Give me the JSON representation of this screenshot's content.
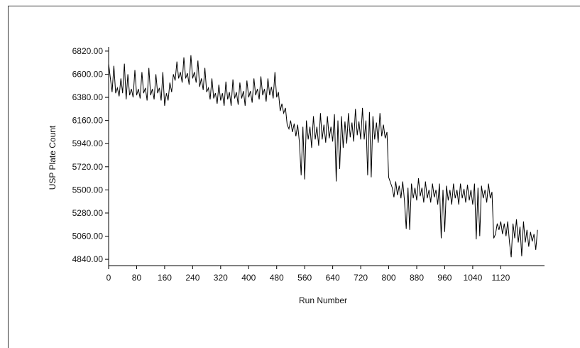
{
  "chart_data": {
    "type": "line",
    "title": "",
    "xlabel": "Run Number",
    "ylabel": "USP Plate Count",
    "xlim": [
      0,
      1245
    ],
    "ylim": [
      4780,
      6860
    ],
    "x_ticks": [
      0,
      80,
      160,
      240,
      320,
      400,
      480,
      560,
      640,
      720,
      800,
      880,
      960,
      1040,
      1120
    ],
    "x_tick_labels": [
      "0",
      "80",
      "160",
      "240",
      "320",
      "400",
      "480",
      "560",
      "640",
      "720",
      "800",
      "880",
      "960",
      "1040",
      "1120"
    ],
    "y_ticks": [
      4840,
      5060,
      5280,
      5500,
      5720,
      5940,
      6160,
      6380,
      6600,
      6820
    ],
    "y_tick_labels": [
      "4840.00",
      "5060.00",
      "5280.00",
      "5500.00",
      "5720.00",
      "5940.00",
      "6160.00",
      "6380.00",
      "6600.00",
      "6820.00"
    ],
    "grid": false,
    "line_color": "#000000",
    "series": [
      {
        "name": "",
        "points": [
          [
            0,
            6700
          ],
          [
            5,
            6560
          ],
          [
            10,
            6430
          ],
          [
            15,
            6680
          ],
          [
            20,
            6420
          ],
          [
            25,
            6470
          ],
          [
            30,
            6390
          ],
          [
            35,
            6560
          ],
          [
            40,
            6420
          ],
          [
            45,
            6700
          ],
          [
            50,
            6360
          ],
          [
            55,
            6600
          ],
          [
            60,
            6400
          ],
          [
            65,
            6460
          ],
          [
            70,
            6380
          ],
          [
            75,
            6640
          ],
          [
            80,
            6400
          ],
          [
            85,
            6460
          ],
          [
            90,
            6370
          ],
          [
            95,
            6620
          ],
          [
            100,
            6420
          ],
          [
            105,
            6470
          ],
          [
            110,
            6350
          ],
          [
            115,
            6660
          ],
          [
            120,
            6400
          ],
          [
            125,
            6460
          ],
          [
            130,
            6360
          ],
          [
            135,
            6600
          ],
          [
            140,
            6420
          ],
          [
            145,
            6470
          ],
          [
            150,
            6350
          ],
          [
            155,
            6620
          ],
          [
            160,
            6300
          ],
          [
            165,
            6420
          ],
          [
            170,
            6350
          ],
          [
            175,
            6520
          ],
          [
            180,
            6430
          ],
          [
            185,
            6600
          ],
          [
            190,
            6540
          ],
          [
            195,
            6720
          ],
          [
            200,
            6560
          ],
          [
            205,
            6620
          ],
          [
            210,
            6520
          ],
          [
            215,
            6760
          ],
          [
            220,
            6560
          ],
          [
            225,
            6610
          ],
          [
            230,
            6500
          ],
          [
            235,
            6780
          ],
          [
            240,
            6560
          ],
          [
            245,
            6620
          ],
          [
            250,
            6520
          ],
          [
            255,
            6730
          ],
          [
            260,
            6480
          ],
          [
            265,
            6560
          ],
          [
            270,
            6450
          ],
          [
            275,
            6660
          ],
          [
            280,
            6430
          ],
          [
            285,
            6470
          ],
          [
            290,
            6360
          ],
          [
            295,
            6560
          ],
          [
            300,
            6370
          ],
          [
            305,
            6420
          ],
          [
            310,
            6320
          ],
          [
            315,
            6500
          ],
          [
            320,
            6350
          ],
          [
            325,
            6420
          ],
          [
            330,
            6300
          ],
          [
            335,
            6530
          ],
          [
            340,
            6360
          ],
          [
            345,
            6430
          ],
          [
            350,
            6300
          ],
          [
            355,
            6550
          ],
          [
            360,
            6370
          ],
          [
            365,
            6430
          ],
          [
            370,
            6310
          ],
          [
            375,
            6520
          ],
          [
            380,
            6370
          ],
          [
            385,
            6440
          ],
          [
            390,
            6300
          ],
          [
            395,
            6540
          ],
          [
            400,
            6380
          ],
          [
            405,
            6440
          ],
          [
            410,
            6330
          ],
          [
            415,
            6560
          ],
          [
            420,
            6400
          ],
          [
            425,
            6460
          ],
          [
            430,
            6360
          ],
          [
            435,
            6580
          ],
          [
            440,
            6400
          ],
          [
            445,
            6460
          ],
          [
            450,
            6340
          ],
          [
            455,
            6560
          ],
          [
            460,
            6400
          ],
          [
            465,
            6480
          ],
          [
            470,
            6370
          ],
          [
            475,
            6620
          ],
          [
            480,
            6380
          ],
          [
            485,
            6430
          ],
          [
            490,
            6250
          ],
          [
            495,
            6320
          ],
          [
            500,
            6230
          ],
          [
            505,
            6280
          ],
          [
            510,
            6120
          ],
          [
            515,
            6080
          ],
          [
            520,
            6160
          ],
          [
            525,
            6050
          ],
          [
            530,
            6130
          ],
          [
            535,
            6010
          ],
          [
            540,
            6120
          ],
          [
            545,
            5950
          ],
          [
            550,
            5640
          ],
          [
            555,
            6100
          ],
          [
            560,
            5600
          ],
          [
            565,
            6160
          ],
          [
            570,
            5980
          ],
          [
            575,
            6100
          ],
          [
            580,
            5900
          ],
          [
            585,
            6200
          ],
          [
            590,
            5980
          ],
          [
            595,
            6100
          ],
          [
            600,
            5920
          ],
          [
            605,
            6230
          ],
          [
            610,
            5980
          ],
          [
            615,
            6120
          ],
          [
            620,
            5950
          ],
          [
            625,
            6200
          ],
          [
            630,
            5990
          ],
          [
            635,
            6100
          ],
          [
            640,
            5960
          ],
          [
            645,
            6220
          ],
          [
            650,
            5580
          ],
          [
            655,
            6160
          ],
          [
            660,
            5700
          ],
          [
            665,
            6200
          ],
          [
            670,
            5900
          ],
          [
            675,
            6150
          ],
          [
            680,
            5940
          ],
          [
            685,
            6230
          ],
          [
            690,
            6000
          ],
          [
            695,
            6140
          ],
          [
            700,
            5960
          ],
          [
            705,
            6270
          ],
          [
            710,
            6020
          ],
          [
            715,
            6150
          ],
          [
            720,
            5980
          ],
          [
            725,
            6280
          ],
          [
            730,
            5980
          ],
          [
            735,
            6160
          ],
          [
            740,
            5640
          ],
          [
            745,
            6240
          ],
          [
            750,
            5620
          ],
          [
            755,
            6200
          ],
          [
            760,
            5980
          ],
          [
            765,
            6140
          ],
          [
            770,
            5950
          ],
          [
            775,
            6230
          ],
          [
            780,
            6010
          ],
          [
            785,
            6120
          ],
          [
            790,
            5990
          ],
          [
            795,
            6050
          ],
          [
            800,
            5620
          ],
          [
            805,
            5570
          ],
          [
            810,
            5520
          ],
          [
            815,
            5430
          ],
          [
            820,
            5580
          ],
          [
            825,
            5450
          ],
          [
            830,
            5540
          ],
          [
            835,
            5420
          ],
          [
            840,
            5580
          ],
          [
            845,
            5400
          ],
          [
            850,
            5130
          ],
          [
            855,
            5520
          ],
          [
            860,
            5120
          ],
          [
            865,
            5560
          ],
          [
            870,
            5420
          ],
          [
            875,
            5520
          ],
          [
            880,
            5400
          ],
          [
            885,
            5610
          ],
          [
            890,
            5440
          ],
          [
            895,
            5520
          ],
          [
            900,
            5380
          ],
          [
            905,
            5580
          ],
          [
            910,
            5420
          ],
          [
            915,
            5500
          ],
          [
            920,
            5380
          ],
          [
            925,
            5560
          ],
          [
            930,
            5430
          ],
          [
            935,
            5500
          ],
          [
            940,
            5360
          ],
          [
            945,
            5560
          ],
          [
            950,
            5040
          ],
          [
            955,
            5500
          ],
          [
            960,
            5100
          ],
          [
            965,
            5540
          ],
          [
            970,
            5400
          ],
          [
            975,
            5500
          ],
          [
            980,
            5360
          ],
          [
            985,
            5560
          ],
          [
            990,
            5420
          ],
          [
            995,
            5500
          ],
          [
            1000,
            5360
          ],
          [
            1005,
            5560
          ],
          [
            1010,
            5420
          ],
          [
            1015,
            5510
          ],
          [
            1020,
            5380
          ],
          [
            1025,
            5550
          ],
          [
            1030,
            5400
          ],
          [
            1035,
            5500
          ],
          [
            1040,
            5360
          ],
          [
            1045,
            5560
          ],
          [
            1050,
            5030
          ],
          [
            1055,
            5520
          ],
          [
            1060,
            5060
          ],
          [
            1065,
            5540
          ],
          [
            1070,
            5420
          ],
          [
            1075,
            5500
          ],
          [
            1080,
            5380
          ],
          [
            1085,
            5560
          ],
          [
            1090,
            5420
          ],
          [
            1095,
            5480
          ],
          [
            1100,
            5040
          ],
          [
            1105,
            5080
          ],
          [
            1110,
            5180
          ],
          [
            1115,
            5120
          ],
          [
            1120,
            5200
          ],
          [
            1125,
            5080
          ],
          [
            1130,
            5180
          ],
          [
            1135,
            5060
          ],
          [
            1140,
            5200
          ],
          [
            1145,
            5000
          ],
          [
            1150,
            4860
          ],
          [
            1155,
            5180
          ],
          [
            1160,
            5040
          ],
          [
            1165,
            5220
          ],
          [
            1170,
            5000
          ],
          [
            1175,
            5150
          ],
          [
            1180,
            4870
          ],
          [
            1185,
            5200
          ],
          [
            1190,
            5000
          ],
          [
            1195,
            5120
          ],
          [
            1200,
            4960
          ],
          [
            1205,
            5100
          ],
          [
            1210,
            5010
          ],
          [
            1215,
            5080
          ],
          [
            1220,
            4930
          ],
          [
            1225,
            5120
          ]
        ]
      }
    ]
  }
}
